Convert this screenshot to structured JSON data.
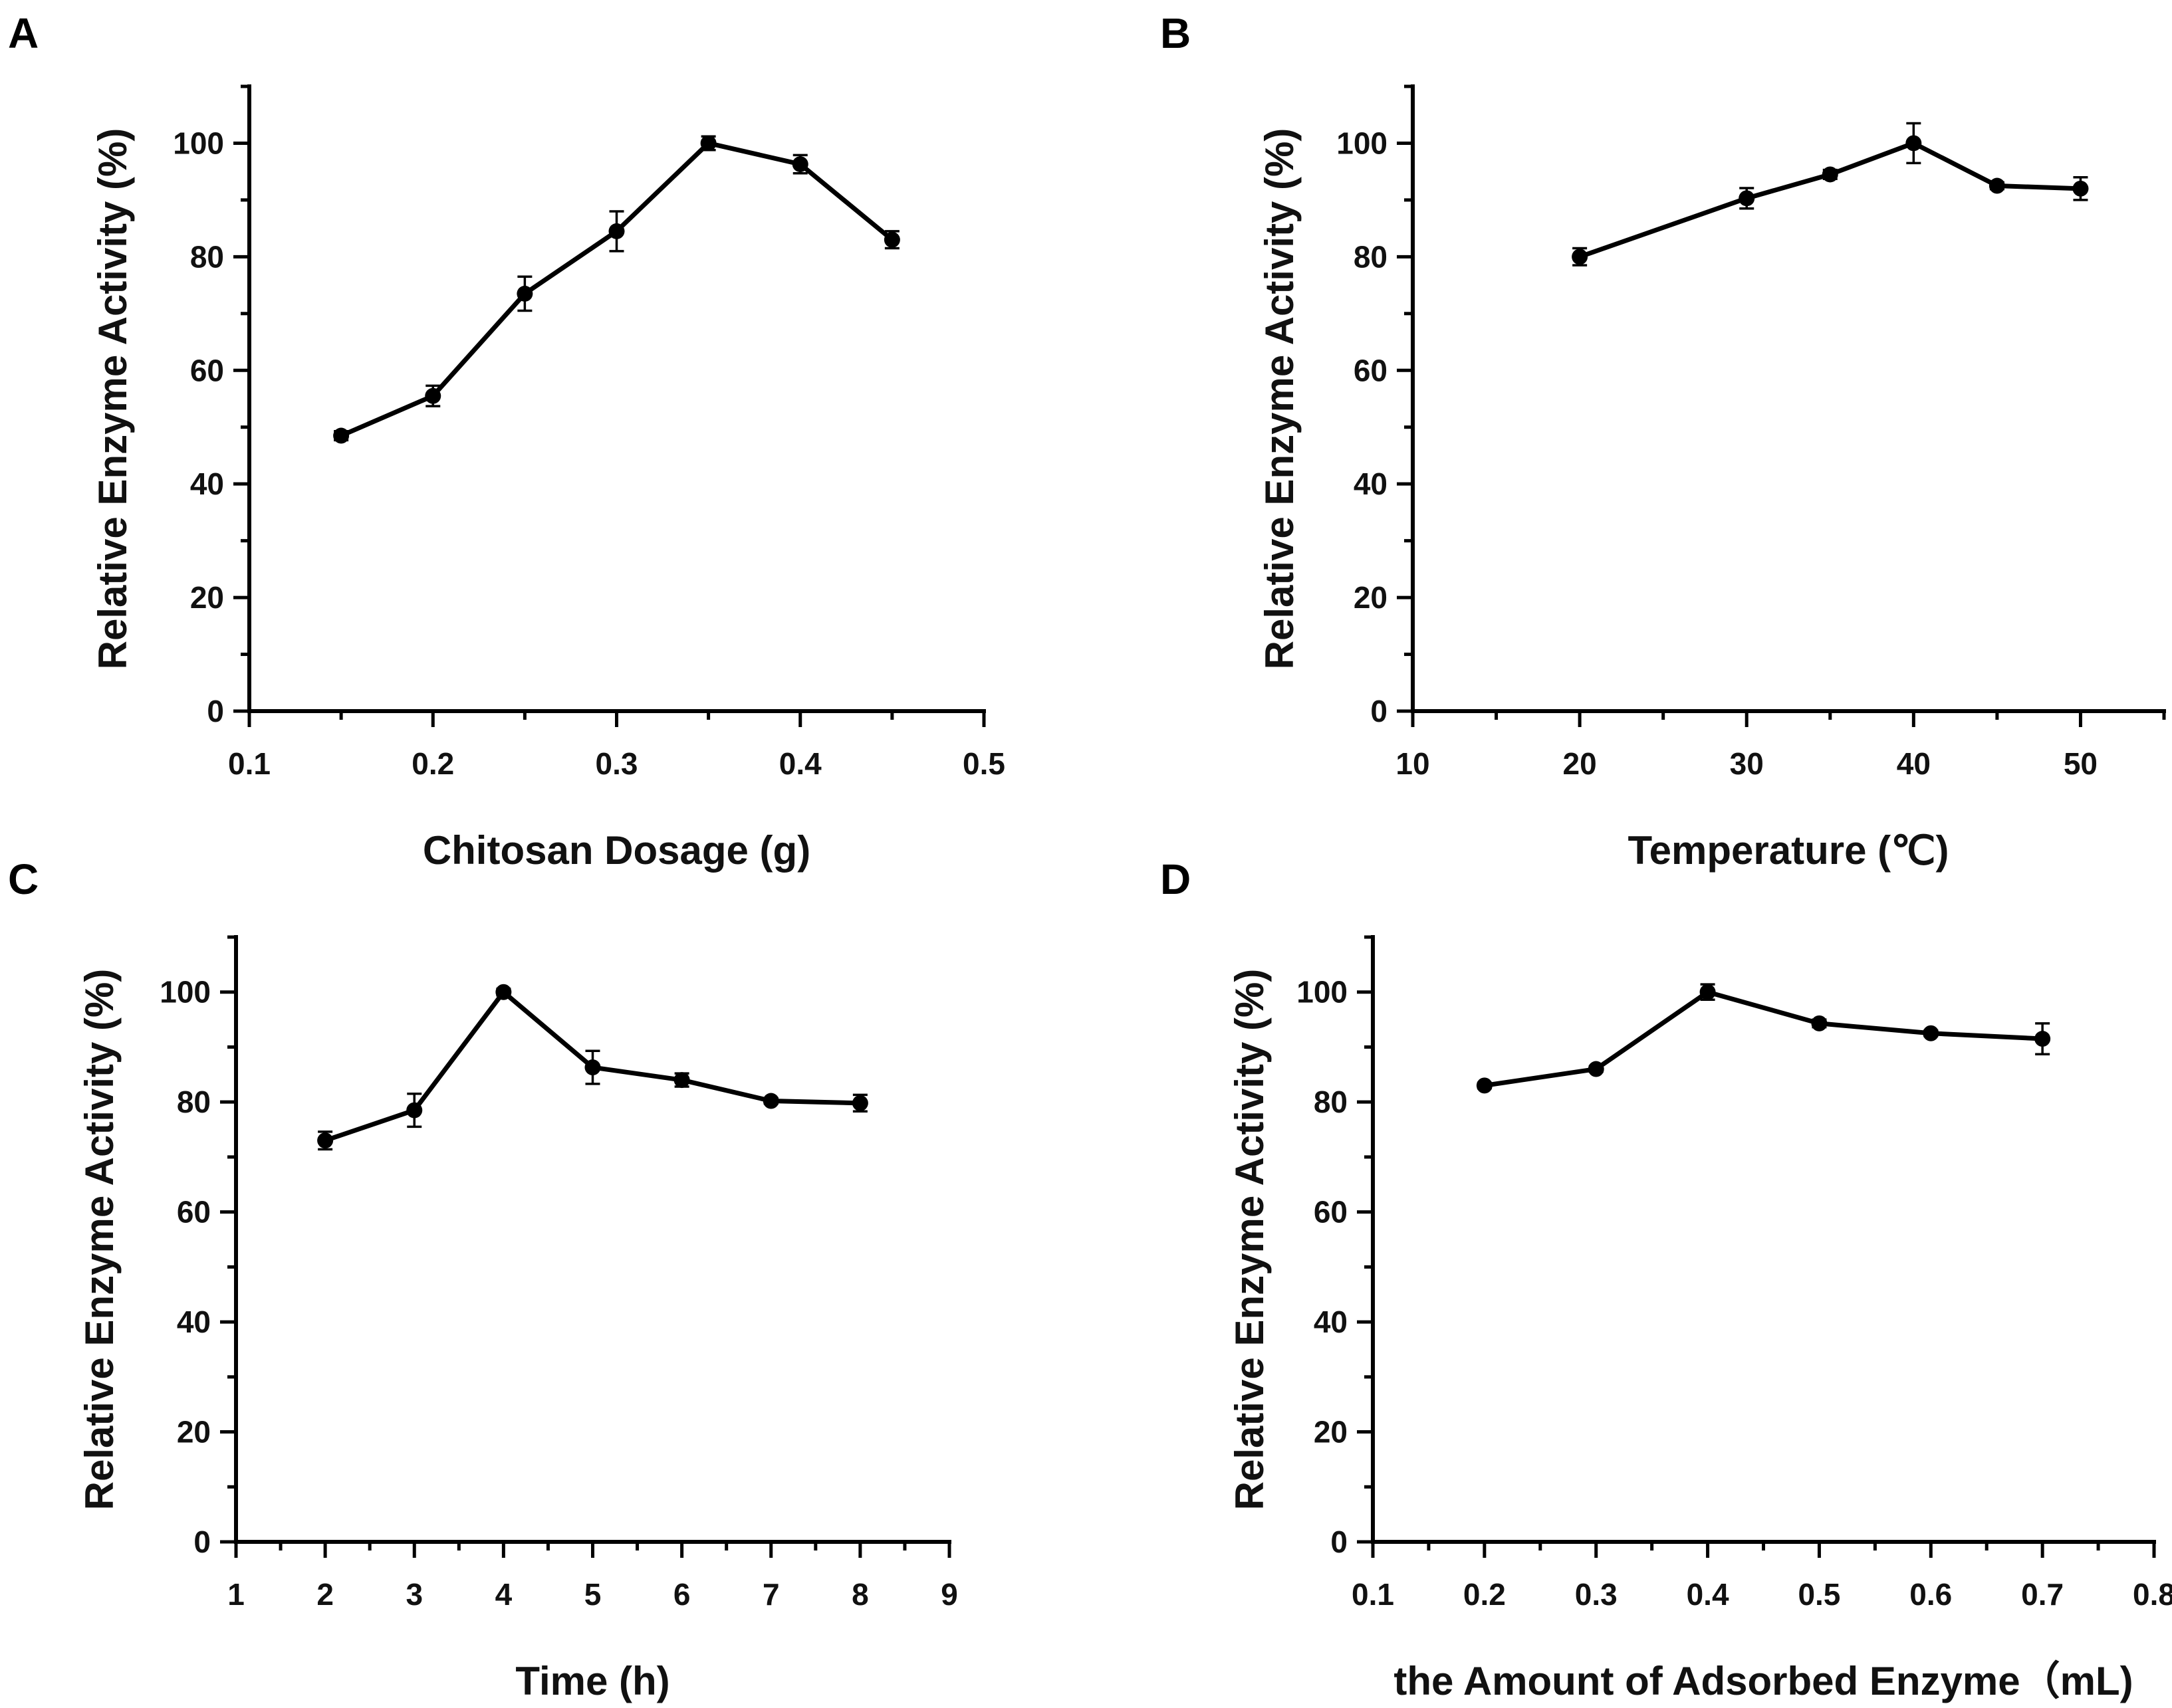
{
  "chart_data": [
    {
      "type": "line",
      "panel": "A",
      "title": "",
      "xlabel": "Chitosan Dosage (g)",
      "ylabel": "Relative Enzyme Activity (%)",
      "xlim": [
        0.1,
        0.5
      ],
      "ylim": [
        0,
        110
      ],
      "xticks": [
        0.1,
        0.2,
        0.3,
        0.4,
        0.5
      ],
      "yticks": [
        0,
        20,
        40,
        60,
        80,
        100
      ],
      "xtick_labels": [
        "0.1",
        "0.2",
        "0.3",
        "0.4",
        "0.5"
      ],
      "ytick_labels": [
        "0",
        "20",
        "40",
        "60",
        "80",
        "100"
      ],
      "x": [
        0.15,
        0.2,
        0.25,
        0.3,
        0.35,
        0.4,
        0.45
      ],
      "y": [
        48.5,
        55.5,
        73.5,
        84.5,
        100,
        96.3,
        83
      ],
      "error": [
        0.8,
        1.8,
        3,
        3.5,
        1.2,
        1.6,
        1.5
      ],
      "grid": false,
      "legend": "none"
    },
    {
      "type": "line",
      "panel": "B",
      "title": "",
      "xlabel": "Temperature (℃)",
      "ylabel": "Relative Enzyme Activity (%)",
      "xlim": [
        10,
        55
      ],
      "ylim": [
        0,
        110
      ],
      "xticks": [
        10,
        20,
        30,
        40,
        50
      ],
      "yticks": [
        0,
        20,
        40,
        60,
        80,
        100
      ],
      "xtick_labels": [
        "10",
        "20",
        "30",
        "40",
        "50"
      ],
      "ytick_labels": [
        "0",
        "20",
        "40",
        "60",
        "80",
        "100"
      ],
      "x": [
        20,
        30,
        35,
        40,
        45,
        50
      ],
      "y": [
        80,
        90.3,
        94.5,
        100,
        92.5,
        92
      ],
      "error": [
        1.5,
        1.8,
        0.8,
        3.5,
        0.6,
        2
      ],
      "grid": false,
      "legend": "none"
    },
    {
      "type": "line",
      "panel": "C",
      "title": "",
      "xlabel": "Time (h)",
      "ylabel": "Relative Enzyme Activity (%)",
      "xlim": [
        1,
        9
      ],
      "ylim": [
        0,
        110
      ],
      "xticks": [
        1,
        2,
        3,
        4,
        5,
        6,
        7,
        8,
        9
      ],
      "yticks": [
        0,
        20,
        40,
        60,
        80,
        100
      ],
      "xtick_labels": [
        "1",
        "2",
        "3",
        "4",
        "5",
        "6",
        "7",
        "8",
        "9"
      ],
      "ytick_labels": [
        "0",
        "20",
        "40",
        "60",
        "80",
        "100"
      ],
      "x": [
        2,
        3,
        4,
        5,
        6,
        7,
        8
      ],
      "y": [
        73,
        78.5,
        100,
        86.3,
        84,
        80.2,
        79.8
      ],
      "error": [
        1.6,
        3,
        0.6,
        3,
        1.2,
        0.5,
        1.5
      ],
      "grid": false,
      "legend": "none"
    },
    {
      "type": "line",
      "panel": "D",
      "title": "",
      "xlabel": "the Amount of Adsorbed Enzyme（mL)",
      "ylabel": "Relative Enzyme Activity (%)",
      "xlim": [
        0.1,
        0.8
      ],
      "ylim": [
        0,
        110
      ],
      "xticks": [
        0.1,
        0.2,
        0.3,
        0.4,
        0.5,
        0.6,
        0.7,
        0.8
      ],
      "yticks": [
        0,
        20,
        40,
        60,
        80,
        100
      ],
      "xtick_labels": [
        "0.1",
        "0.2",
        "0.3",
        "0.4",
        "0.5",
        "0.6",
        "0.7",
        "0.8"
      ],
      "ytick_labels": [
        "0",
        "20",
        "40",
        "60",
        "80",
        "100"
      ],
      "x": [
        0.2,
        0.3,
        0.4,
        0.5,
        0.6,
        0.7
      ],
      "y": [
        83,
        86,
        100,
        94.3,
        92.5,
        91.5
      ],
      "error": [
        0.5,
        0.5,
        1.4,
        0.7,
        0.5,
        2.8
      ],
      "grid": false,
      "legend": "none"
    }
  ]
}
